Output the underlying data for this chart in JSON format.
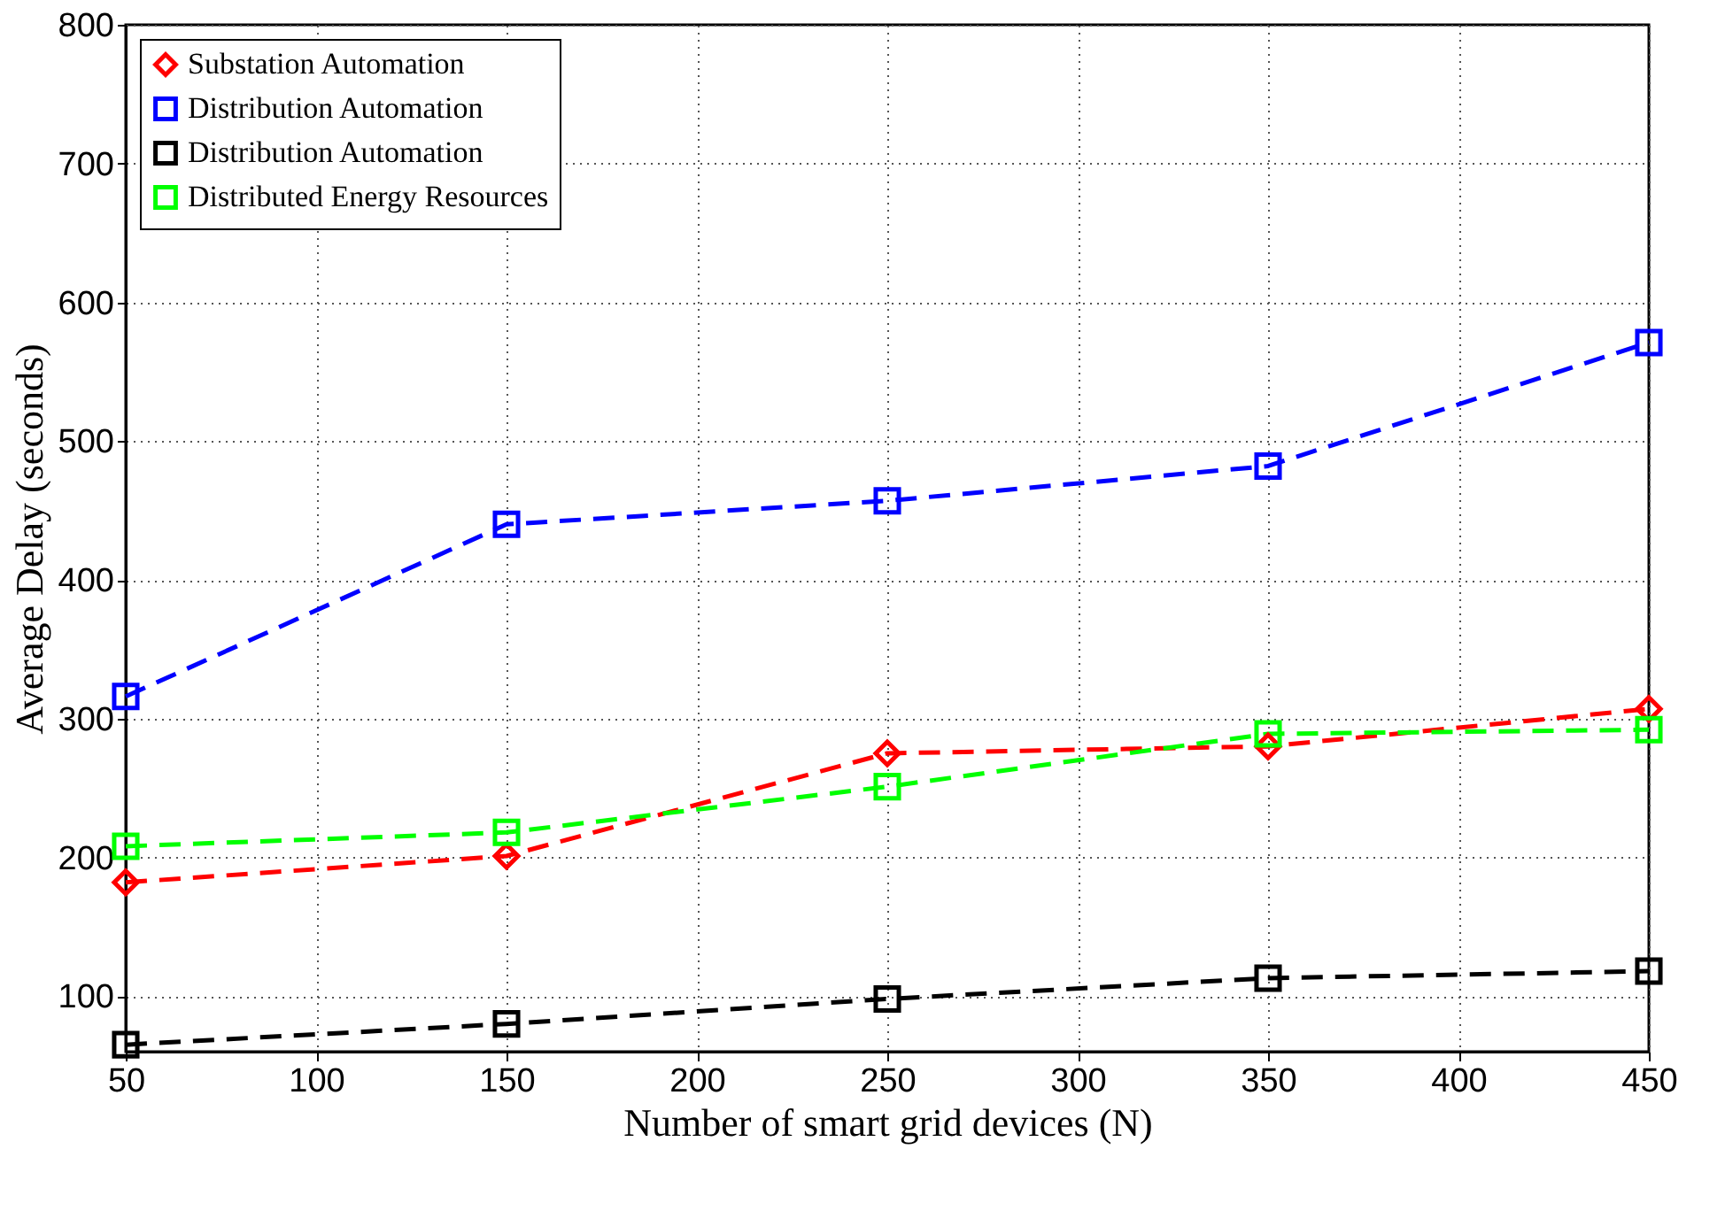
{
  "chart_data": {
    "type": "line",
    "xlabel": "Number of smart grid devices (N)",
    "ylabel": "Average Delay (seconds)",
    "x": [
      50,
      150,
      250,
      350,
      450
    ],
    "series": [
      {
        "name": "Substation Automation",
        "color": "#ff0000",
        "marker": "diamond",
        "values": [
          182,
          201,
          275,
          280,
          307
        ]
      },
      {
        "name": "Distribution Automation",
        "color": "#0000ff",
        "marker": "square",
        "values": [
          316,
          440,
          457,
          482,
          571
        ]
      },
      {
        "name": "Distribution Automation",
        "color": "#000000",
        "marker": "square",
        "values": [
          65,
          80,
          98,
          113,
          118
        ]
      },
      {
        "name": "Distributed Energy Resources",
        "color": "#00ff00",
        "marker": "square",
        "values": [
          208,
          218,
          251,
          289,
          292
        ]
      }
    ],
    "xlim": [
      50,
      450
    ],
    "xticks": [
      50,
      100,
      150,
      200,
      250,
      300,
      350,
      400,
      450
    ],
    "ylim": [
      60,
      800
    ],
    "yticks": [
      100,
      200,
      300,
      400,
      500,
      600,
      700,
      800
    ],
    "grid": true,
    "legend": "top left",
    "line_style": "dashed"
  }
}
